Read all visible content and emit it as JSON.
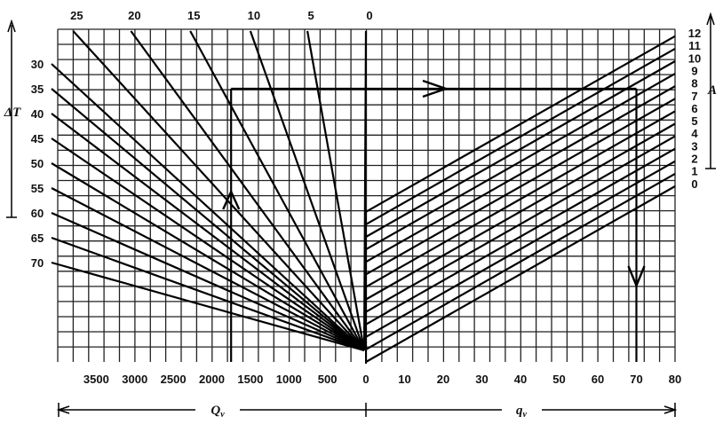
{
  "chart_data": {
    "type": "line",
    "left_panel": {
      "xlabel": "Q",
      "xlabel_sub": "v",
      "x_ticks": [
        3500,
        3000,
        2500,
        2000,
        1500,
        1000,
        500,
        0
      ],
      "xlim": [
        4000,
        0
      ],
      "ylabel": "ΔT",
      "y_ticks": [
        30,
        35,
        40,
        45,
        50,
        55,
        60,
        65,
        70
      ],
      "top_labels": [
        "25",
        "20",
        "15",
        "10",
        "5",
        "0"
      ],
      "fan_lines": [
        {
          "top_Q": 3800,
          "DeltaT": null
        },
        {
          "top_Q": 3050,
          "DeltaT": null
        },
        {
          "top_Q": 2280,
          "DeltaT": null
        },
        {
          "top_Q": 1500,
          "DeltaT": null
        },
        {
          "top_Q": 760,
          "DeltaT": null
        },
        {
          "top_Q": 0,
          "DeltaT": null
        },
        {
          "top_Q": null,
          "DeltaT": 30
        },
        {
          "top_Q": null,
          "DeltaT": 35
        },
        {
          "top_Q": null,
          "DeltaT": 40
        },
        {
          "top_Q": null,
          "DeltaT": 45
        },
        {
          "top_Q": null,
          "DeltaT": 50
        },
        {
          "top_Q": null,
          "DeltaT": 55
        },
        {
          "top_Q": null,
          "DeltaT": 60
        },
        {
          "top_Q": null,
          "DeltaT": 65
        },
        {
          "top_Q": null,
          "DeltaT": 70
        }
      ]
    },
    "right_panel": {
      "xlabel": "q",
      "xlabel_sub": "v",
      "x_ticks": [
        0,
        10,
        20,
        30,
        40,
        50,
        60,
        70,
        80
      ],
      "xlim": [
        0,
        80
      ],
      "alabel": "A",
      "a_values": [
        "12",
        "11",
        "10",
        "9",
        "8",
        "7",
        "6",
        "5",
        "4",
        "3",
        "2",
        "1",
        "0"
      ]
    },
    "example_path": {
      "Q": 1750,
      "DeltaT": 35,
      "q": 70
    },
    "grid": true
  }
}
